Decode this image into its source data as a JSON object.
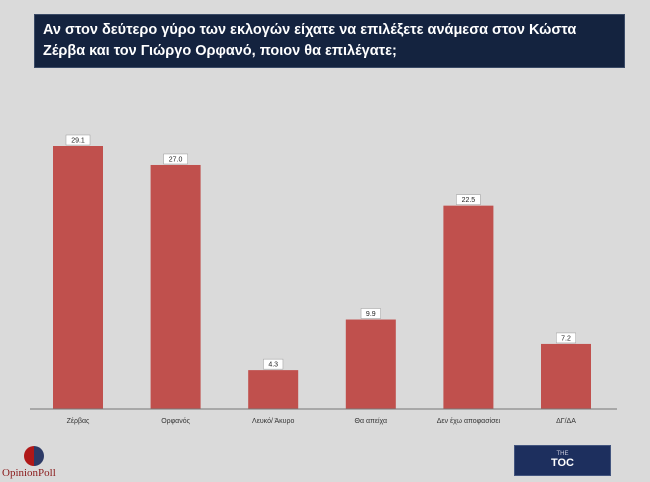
{
  "title": "Αν στον δεύτερο γύρο των εκλογών είχατε να επιλέξετε ανάμεσα στον Κώστα Ζέρβα και τον Γιώργο Ορφανό, ποιον θα επιλέγατε;",
  "chart_data": {
    "type": "bar",
    "title": "Αν στον δεύτερο γύρο των εκλογών είχατε να επιλέξετε ανάμεσα στον Κώστα Ζέρβα και τον Γιώργο Ορφανό, ποιον θα επιλέγατε;",
    "categories": [
      "Ζέρβας",
      "Ορφανός",
      "Λευκό/ Άκυρο",
      "Θα απείχα",
      "Δεν έχω αποφασίσει",
      "ΔΓ/ΔΑ"
    ],
    "values": [
      29.1,
      27.0,
      4.3,
      9.9,
      22.5,
      7.2
    ],
    "data_labels": [
      "29.1",
      "27.0",
      "4.3",
      "9.9",
      "22.5",
      "7.2"
    ],
    "xlabel": "",
    "ylabel": "",
    "ylim": [
      0,
      32
    ],
    "grid": false,
    "bar_color": "#c0504d"
  },
  "logos": {
    "left": "OpinionPoll",
    "right_top": "THE",
    "right": "TOC"
  }
}
